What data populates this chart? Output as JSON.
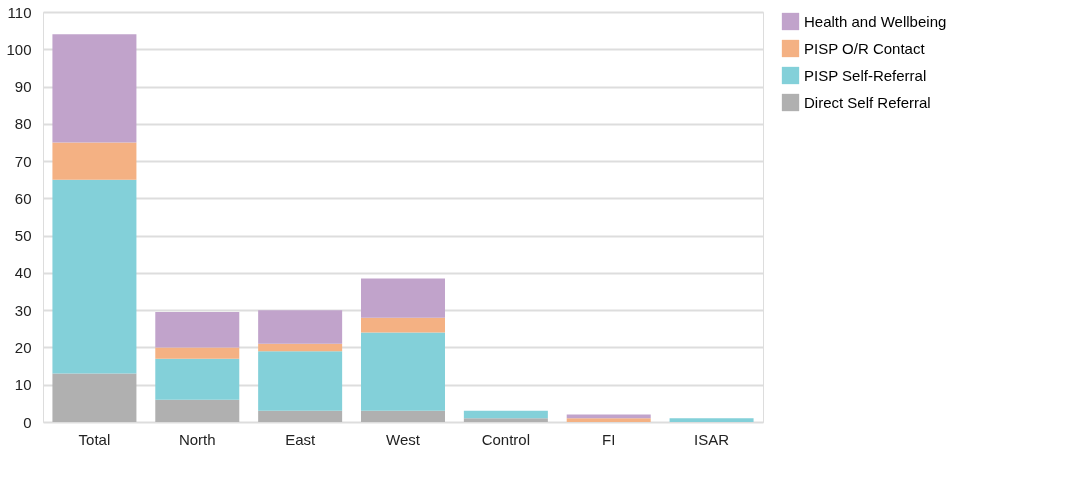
{
  "chart_data": {
    "type": "bar",
    "stacked": true,
    "categories": [
      "Total",
      "North",
      "East",
      "West",
      "Control",
      "FI",
      "ISAR"
    ],
    "series": [
      {
        "name": "Direct Self Referral",
        "color": "#b0b0b0",
        "values": [
          13,
          6,
          3,
          3,
          1,
          0,
          0
        ]
      },
      {
        "name": "PISP Self-Referral",
        "color": "#83d0d9",
        "values": [
          52,
          11,
          16,
          21,
          2,
          0,
          1
        ]
      },
      {
        "name": "PISP O/R Contact",
        "color": "#f4b183",
        "values": [
          10,
          3,
          2,
          4,
          0,
          1,
          0
        ]
      },
      {
        "name": "Health and Wellbeing",
        "color": "#c1a3cb",
        "values": [
          29,
          9.5,
          9,
          10.5,
          0,
          1,
          0
        ]
      }
    ],
    "ylim": [
      0,
      110
    ],
    "yticks": [
      0,
      10,
      20,
      30,
      40,
      50,
      60,
      70,
      80,
      90,
      100,
      110
    ],
    "grid": "y",
    "legend": "top right"
  }
}
